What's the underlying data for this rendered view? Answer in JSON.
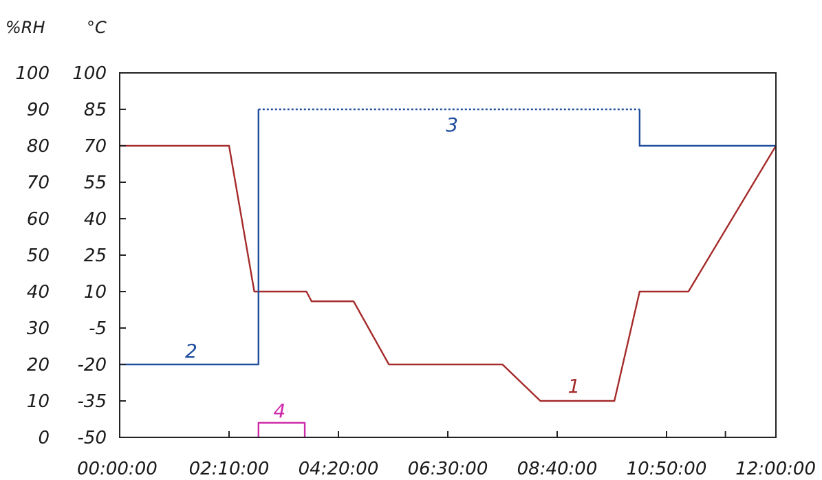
{
  "chart_data": {
    "type": "line",
    "units": {
      "rh": "%RH",
      "temp": "°C"
    },
    "x_ticks": [
      "00:00:00",
      "02:10:00",
      "04:20:00",
      "06:30:00",
      "08:40:00",
      "10:50:00",
      "12:00:00"
    ],
    "x_tick_minutes": [
      0,
      130,
      260,
      390,
      520,
      650,
      720
    ],
    "x_range_minutes": [
      0,
      780
    ],
    "rh_ticks": [
      "100",
      "90",
      "80",
      "70",
      "60",
      "50",
      "40",
      "30",
      "20",
      "10",
      "0"
    ],
    "temp_ticks": [
      "100",
      "85",
      "70",
      "55",
      "40",
      "25",
      "10",
      "-5",
      "-20",
      "-35",
      "-50"
    ],
    "rh_range": [
      0,
      100
    ],
    "temp_range": [
      -50,
      100
    ],
    "grid": false,
    "series": [
      {
        "label": "1",
        "axis": "temp",
        "color": "#a52a2a",
        "style": "solid",
        "points": [
          [
            0,
            70
          ],
          [
            130,
            70
          ],
          [
            160,
            10
          ],
          [
            222,
            10
          ],
          [
            228,
            6
          ],
          [
            278,
            6
          ],
          [
            320,
            -20
          ],
          [
            455,
            -20
          ],
          [
            500,
            -35
          ],
          [
            588,
            -35
          ],
          [
            618,
            10
          ],
          [
            676,
            10
          ],
          [
            780,
            70
          ]
        ]
      },
      {
        "label": "2",
        "axis": "rh",
        "color": "#1f4e9e",
        "style": "solid",
        "points": [
          [
            0,
            20
          ],
          [
            165,
            20
          ],
          [
            165,
            50
          ]
        ]
      },
      {
        "label": "3",
        "axis": "rh",
        "color": "#1f4e9e",
        "style": "mixed",
        "points": [
          [
            165,
            50
          ],
          [
            165,
            90
          ],
          [
            618,
            90
          ],
          [
            618,
            80
          ],
          [
            780,
            80
          ]
        ]
      },
      {
        "label": "4",
        "axis": "rh",
        "color": "#cc2aa8",
        "style": "solid",
        "points": [
          [
            165,
            0
          ],
          [
            165,
            4
          ],
          [
            220,
            4
          ],
          [
            220,
            0
          ]
        ]
      }
    ]
  }
}
